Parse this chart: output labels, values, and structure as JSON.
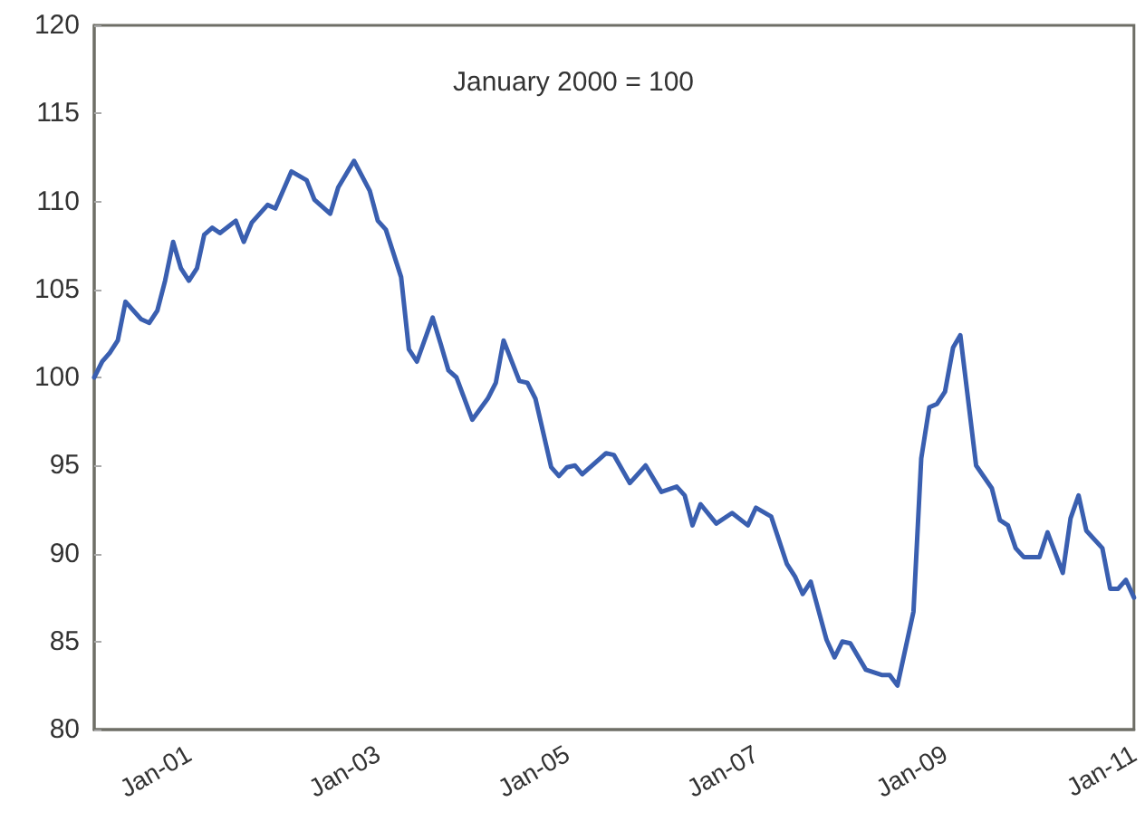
{
  "chart_data": {
    "type": "line",
    "annotations": [
      "January 2000 = 100"
    ],
    "x": [
      "2000-01",
      "2000-02",
      "2000-03",
      "2000-04",
      "2000-05",
      "2000-07",
      "2000-08",
      "2000-09",
      "2000-10",
      "2000-11",
      "2000-12",
      "2001-01",
      "2001-02",
      "2001-03",
      "2001-04",
      "2001-05",
      "2001-07",
      "2001-08",
      "2001-09",
      "2001-11",
      "2001-12",
      "2002-02",
      "2002-04",
      "2002-05",
      "2002-07",
      "2002-08",
      "2002-10",
      "2002-12",
      "2003-01",
      "2003-02",
      "2003-04",
      "2003-05",
      "2003-06",
      "2003-08",
      "2003-09",
      "2003-10",
      "2003-11",
      "2004-01",
      "2004-03",
      "2004-04",
      "2004-05",
      "2004-07",
      "2004-08",
      "2004-09",
      "2004-11",
      "2004-12",
      "2005-01",
      "2005-02",
      "2005-03",
      "2005-06",
      "2005-07",
      "2005-09",
      "2005-11",
      "2006-01",
      "2006-03",
      "2006-04",
      "2006-05",
      "2006-06",
      "2006-08",
      "2006-10",
      "2006-12",
      "2007-01",
      "2007-03",
      "2007-05",
      "2007-06",
      "2007-07",
      "2007-08",
      "2007-10",
      "2007-11",
      "2007-12",
      "2008-01",
      "2008-03",
      "2008-05",
      "2008-06",
      "2008-07",
      "2008-09",
      "2008-10",
      "2008-11",
      "2008-12",
      "2009-01",
      "2009-02",
      "2009-03",
      "2009-05",
      "2009-07",
      "2009-08",
      "2009-09",
      "2009-10",
      "2009-11",
      "2010-01",
      "2010-02",
      "2010-04",
      "2010-05",
      "2010-06",
      "2010-07",
      "2010-09",
      "2010-10",
      "2010-11",
      "2010-12",
      "2011-01"
    ],
    "series": [
      {
        "color": "#3a5fb0",
        "values": [
          100.0,
          100.9,
          101.4,
          102.1,
          104.3,
          103.3,
          103.1,
          103.8,
          105.5,
          107.7,
          106.2,
          105.5,
          106.2,
          108.1,
          108.5,
          108.2,
          108.9,
          107.7,
          108.8,
          109.8,
          109.6,
          111.7,
          111.2,
          110.1,
          109.3,
          110.8,
          112.3,
          110.6,
          108.9,
          108.4,
          105.7,
          101.6,
          100.9,
          103.4,
          101.9,
          100.4,
          100.0,
          97.6,
          98.8,
          99.7,
          102.1,
          99.8,
          99.7,
          98.8,
          94.9,
          94.4,
          94.9,
          95.0,
          94.5,
          95.7,
          95.6,
          94.0,
          95.0,
          93.5,
          93.8,
          93.3,
          91.6,
          92.8,
          91.7,
          92.3,
          91.6,
          92.6,
          92.1,
          89.4,
          88.7,
          87.7,
          88.4,
          85.1,
          84.1,
          85.0,
          84.9,
          83.4,
          83.1,
          83.1,
          82.5,
          86.7,
          95.4,
          98.3,
          98.5,
          99.2,
          101.7,
          102.4,
          95.0,
          93.7,
          91.9,
          91.6,
          90.3,
          89.8,
          89.8,
          91.2,
          88.9,
          92.0,
          93.3,
          91.3,
          90.3,
          88.0,
          88.0,
          88.5,
          87.5
        ]
      }
    ],
    "xlim": [
      "2000-01",
      "2011-01"
    ],
    "xticks": [
      {
        "value": "2001-01",
        "label": "Jan-01"
      },
      {
        "value": "2003-01",
        "label": "Jan-03"
      },
      {
        "value": "2005-01",
        "label": "Jan-05"
      },
      {
        "value": "2007-01",
        "label": "Jan-07"
      },
      {
        "value": "2009-01",
        "label": "Jan-09"
      },
      {
        "value": "2011-01",
        "label": "Jan-11"
      }
    ],
    "ylim": [
      80,
      120
    ],
    "yticks": [
      80,
      85,
      90,
      95,
      100,
      105,
      110,
      115,
      120
    ],
    "grid": false,
    "legend": false,
    "marker": "none",
    "line_style": "solid"
  }
}
